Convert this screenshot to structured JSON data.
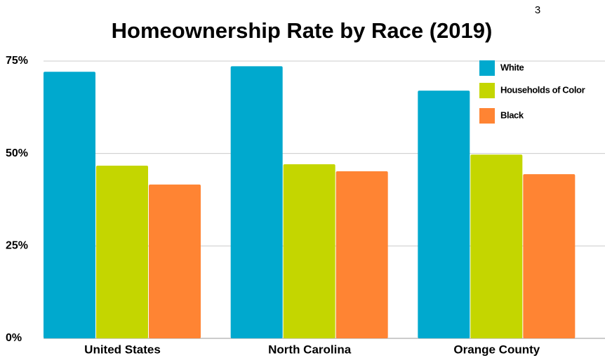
{
  "chart_data": {
    "type": "bar",
    "title": "Homeownership Rate by Race (2019)",
    "annotation": "3",
    "categories": [
      "United States",
      "North Carolina",
      "Orange County"
    ],
    "series": [
      {
        "name": "White",
        "color": "#00a9ce",
        "values": [
          72.1,
          73.6,
          67
        ]
      },
      {
        "name": "Households of Color",
        "color": "#c4d600",
        "values": [
          46.7,
          47.1,
          49.7
        ]
      },
      {
        "name": "Black",
        "color": "#ff8433",
        "values": [
          41.6,
          45.2,
          44.4
        ]
      }
    ],
    "ylim": [
      0,
      75
    ],
    "yticks": [
      {
        "value": 0,
        "label": "0%"
      },
      {
        "value": 25,
        "label": "25%"
      },
      {
        "value": 50,
        "label": "50%"
      },
      {
        "value": 75,
        "label": "75%"
      }
    ],
    "grid": true,
    "legend": "top-right"
  }
}
